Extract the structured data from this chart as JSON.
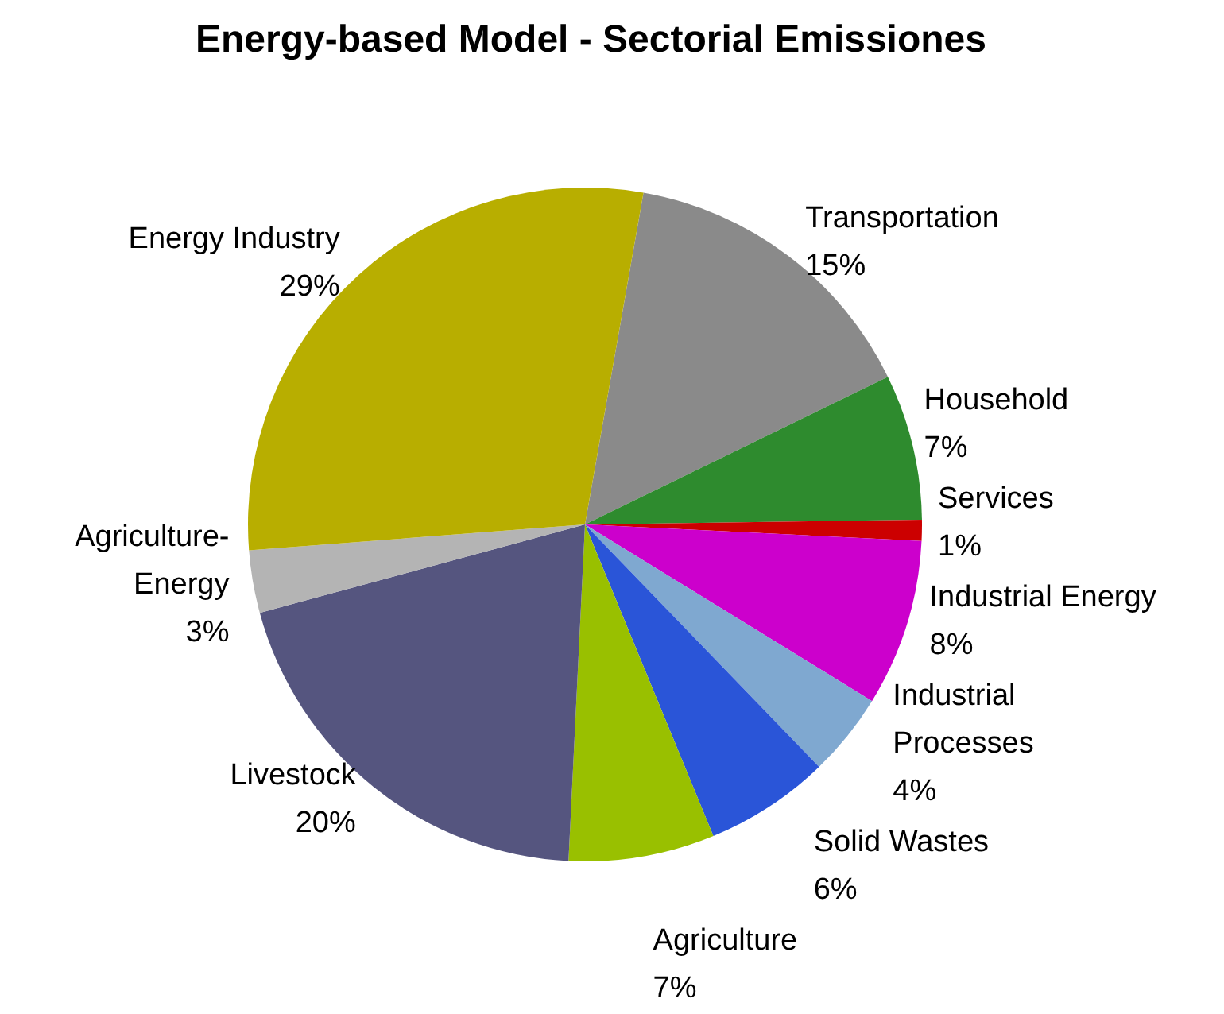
{
  "chart_data": {
    "type": "pie",
    "title": "Energy-based Model - Sectorial Emissiones",
    "categories": [
      "Transportation",
      "Household",
      "Services",
      "Industrial Energy",
      "Industrial Processes",
      "Solid Wastes",
      "Agriculture",
      "Livestock",
      "Agriculture-Energy",
      "Energy Industry"
    ],
    "values": [
      15,
      7,
      1,
      8,
      4,
      6,
      7,
      20,
      3,
      29
    ],
    "colors": [
      "#8a8a8a",
      "#2e8b2e",
      "#cc0000",
      "#cc00cc",
      "#7fa8d0",
      "#2a55d8",
      "#99c000",
      "#55557f",
      "#b4b4b4",
      "#b8ae00"
    ],
    "value_labels": [
      "15%",
      "7%",
      "1%",
      "8%",
      "4%",
      "6%",
      "7%",
      "20%",
      "3%",
      "29%"
    ],
    "legend": false
  }
}
